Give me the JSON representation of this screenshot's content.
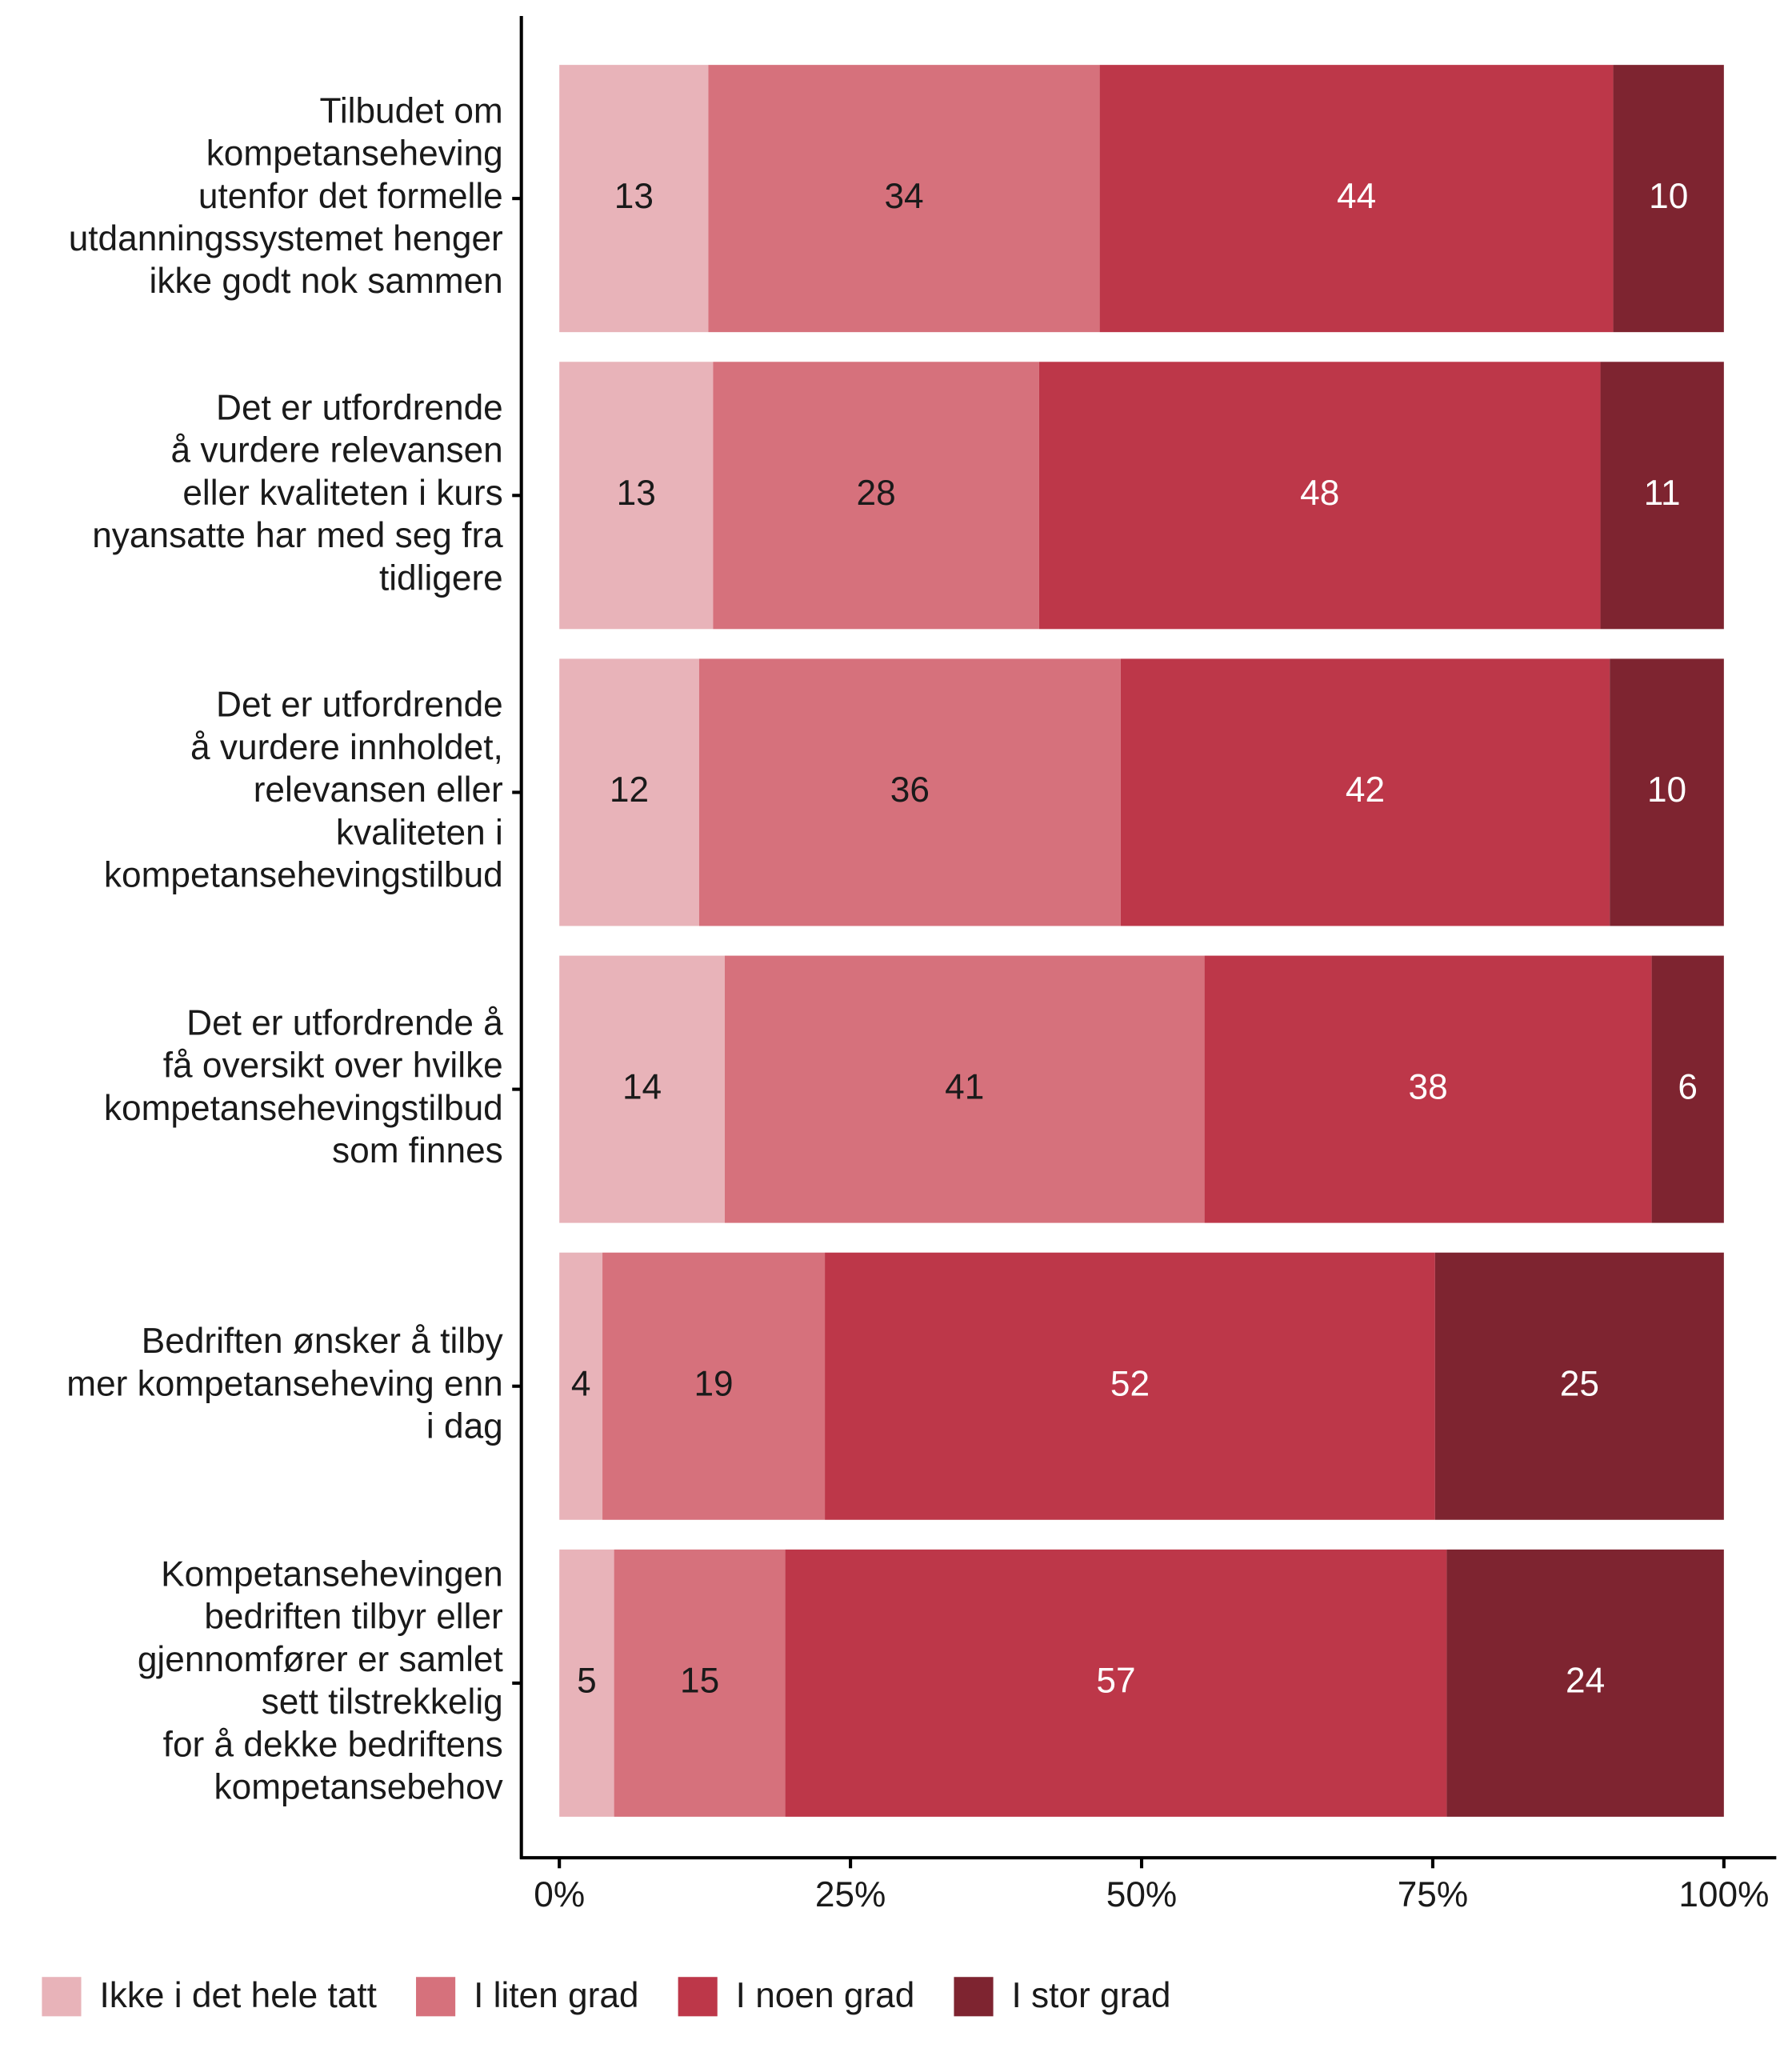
{
  "chart_data": {
    "type": "stacked-bar",
    "orientation": "horizontal",
    "categories": [
      [
        "Tilbudet om",
        "kompetanseheving",
        "utenfor det formelle",
        "utdanningssystemet henger",
        "ikke godt nok sammen"
      ],
      [
        "Det er utfordrende",
        "å vurdere relevansen",
        "eller kvaliteten i kurs",
        "nyansatte har med seg fra",
        "tidligere"
      ],
      [
        "Det er utfordrende",
        "å vurdere innholdet,",
        "relevansen eller",
        "kvaliteten i",
        "kompetansehevingstilbud"
      ],
      [
        "Det er utfordrende å",
        "få oversikt over hvilke",
        "kompetansehevingstilbud",
        "som finnes"
      ],
      [
        "Bedriften ønsker å tilby",
        "mer kompetanseheving enn",
        "i dag"
      ],
      [
        "Kompetansehevingen",
        "bedriften tilbyr eller",
        "gjennomfører er samlet",
        "sett tilstrekkelig",
        "for å dekke bedriftens",
        "kompetansebehov"
      ]
    ],
    "series": [
      {
        "name": "Ikke i det hele tatt",
        "color": "#e8b3b9",
        "label_color": "#1a1a1a",
        "values": [
          12.8,
          13.2,
          12.0,
          14.2,
          3.7,
          4.7
        ],
        "value_labels": [
          "13",
          "13",
          "12",
          "14",
          "4",
          "5"
        ]
      },
      {
        "name": "I liten grad",
        "color": "#d6717c",
        "label_color": "#1a1a1a",
        "values": [
          33.6,
          28.0,
          36.2,
          41.2,
          19.1,
          14.7
        ],
        "value_labels": [
          "34",
          "28",
          "36",
          "41",
          "19",
          "15"
        ]
      },
      {
        "name": "I noen grad",
        "color": "#bd3749",
        "label_color": "#ffffff",
        "values": [
          44.1,
          48.2,
          42.0,
          38.4,
          52.4,
          56.8
        ],
        "value_labels": [
          "44",
          "48",
          "42",
          "38",
          "52",
          "57"
        ]
      },
      {
        "name": "I stor grad",
        "color": "#7e2430",
        "label_color": "#ffffff",
        "values": [
          9.5,
          10.6,
          9.8,
          6.2,
          24.8,
          23.8
        ],
        "value_labels": [
          "10",
          "11",
          "10",
          "6",
          "25",
          "24"
        ]
      }
    ],
    "xlim": [
      0,
      100
    ],
    "xticks": [
      {
        "value": 0,
        "label": "0%"
      },
      {
        "value": 25,
        "label": "25%"
      },
      {
        "value": 50,
        "label": "50%"
      },
      {
        "value": 75,
        "label": "75%"
      },
      {
        "value": 100,
        "label": "100%"
      }
    ],
    "legend": "bottom"
  }
}
